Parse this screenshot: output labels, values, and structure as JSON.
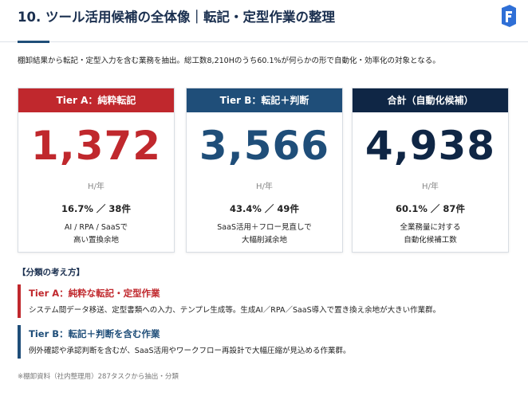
{
  "header": {
    "title": "10. ツール活用候補の全体像｜転記・定型作業の整理",
    "subtitle": "棚卸結果から転記・定型入力を含む業務を抽出。総工数8,210Hのうち60.1%が何らかの形で自動化・効率化の対象となる。"
  },
  "cards": [
    {
      "label": "Tier A：純粋転記",
      "value": "1,372",
      "unit": "H/年",
      "stats": "16.7% ／ 38件",
      "description": [
        "AI / RPA / SaaSで",
        "高い置換余地"
      ]
    },
    {
      "label": "Tier B：転記＋判断",
      "value": "3,566",
      "unit": "H/年",
      "stats": "43.4% ／ 49件",
      "description": [
        "SaaS活用＋フロー見直しで",
        "大幅削減余地"
      ]
    },
    {
      "label": "合計（自動化候補）",
      "value": "4,938",
      "unit": "H/年",
      "stats": "60.1% ／ 87件",
      "description": [
        "全業務量に対する",
        "自動化候補工数"
      ]
    }
  ],
  "classification": {
    "title": "【分類の考え方】",
    "items": [
      {
        "title": "Tier A：純粋な転記・定型作業",
        "description": "システム間データ移送、定型書類への入力、テンプレ生成等。生成AI／RPA／SaaS導入で置き換え余地が大きい作業群。"
      },
      {
        "title": "Tier B：転記＋判断を含む作業",
        "description": "例外確認や承認判断を含むが、SaaS活用やワークフロー再設計で大幅圧縮が見込める作業群。"
      }
    ]
  },
  "footnote": "※棚卸資料（社内整理用）287タスクから抽出・分類"
}
